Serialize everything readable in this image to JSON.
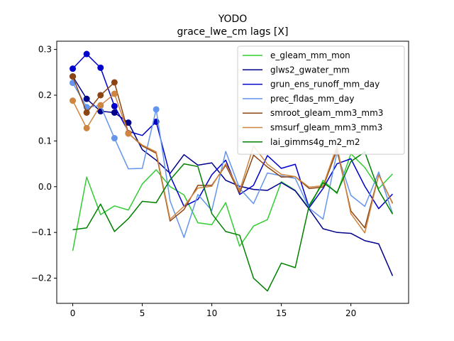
{
  "chart_data": {
    "type": "line",
    "title": "YODO",
    "subtitle": "grace_lwe_cm lags [X]",
    "xlabel": "",
    "ylabel": "",
    "xlim": [
      -1.15,
      24.15
    ],
    "ylim": [
      -0.255,
      0.318
    ],
    "x_ticks": [
      0,
      5,
      10,
      15,
      20
    ],
    "y_ticks": [
      -0.2,
      -0.1,
      0.0,
      0.1,
      0.2,
      0.3
    ],
    "y_tick_labels": [
      "−0.2",
      "−0.1",
      "0.0",
      "0.1",
      "0.2",
      "0.3"
    ],
    "legend_position": "top-right",
    "x": [
      0,
      1,
      2,
      3,
      4,
      5,
      6,
      7,
      8,
      9,
      10,
      11,
      12,
      13,
      14,
      15,
      16,
      17,
      18,
      19,
      20,
      21,
      22,
      23
    ],
    "series": [
      {
        "name": "e_gleam_mm_mon",
        "color": "#32cd32",
        "values": [
          -0.14,
          0.021,
          -0.061,
          -0.042,
          -0.051,
          0.006,
          0.037,
          0.0,
          -0.018,
          -0.079,
          -0.083,
          -0.035,
          -0.13,
          -0.086,
          -0.072,
          0.011,
          -0.008,
          -0.047,
          0.014,
          -0.015,
          0.072,
          0.042,
          -0.004,
          0.028
        ],
        "markers": []
      },
      {
        "name": "glws2_gwater_mm",
        "color": "#00008b",
        "values": [
          0.241,
          0.192,
          0.165,
          0.162,
          0.14,
          0.081,
          0.058,
          0.029,
          0.07,
          0.047,
          0.052,
          0.014,
          0.001,
          -0.006,
          -0.008,
          0.009,
          -0.009,
          -0.049,
          -0.092,
          -0.1,
          -0.102,
          -0.118,
          -0.125,
          -0.195
        ],
        "markers": [
          0,
          1,
          2,
          3,
          4
        ]
      },
      {
        "name": "grun_ens_runoff_mm_day",
        "color": "#0000cd",
        "values": [
          0.258,
          0.29,
          0.26,
          0.176,
          0.121,
          0.112,
          0.142,
          0.024,
          -0.043,
          -0.028,
          0.026,
          0.058,
          -0.017,
          0.003,
          0.068,
          0.04,
          0.049,
          -0.046,
          -0.004,
          0.05,
          0.061,
          0.001,
          -0.048,
          -0.016
        ],
        "markers": [
          0,
          1,
          2,
          3,
          6
        ]
      },
      {
        "name": "prec_fldas_mm_day",
        "color": "#6495ed",
        "values": [
          0.227,
          0.174,
          0.177,
          0.106,
          0.039,
          0.04,
          0.169,
          -0.031,
          -0.111,
          -0.017,
          -0.052,
          0.077,
          -0.004,
          -0.037,
          0.03,
          0.024,
          0.018,
          -0.047,
          -0.071,
          0.075,
          -0.019,
          -0.043,
          0.032,
          -0.059
        ],
        "markers": [
          0,
          1,
          2,
          3,
          6
        ]
      },
      {
        "name": "smroot_gleam_mm3_mm3",
        "color": "#8b4513",
        "values": [
          0.241,
          0.162,
          0.2,
          0.228,
          0.117,
          0.089,
          0.073,
          -0.075,
          -0.05,
          0.003,
          0.003,
          0.047,
          -0.014,
          0.069,
          0.043,
          0.021,
          0.022,
          -0.004,
          -0.001,
          0.081,
          -0.053,
          -0.09,
          0.026,
          -0.036
        ],
        "markers": [
          0,
          1,
          2,
          3,
          4
        ]
      },
      {
        "name": "smsurf_gleam_mm3_mm3",
        "color": "#cd853f",
        "values": [
          0.188,
          0.128,
          0.178,
          0.203,
          0.116,
          0.091,
          0.076,
          -0.071,
          -0.043,
          -0.003,
          0.001,
          0.05,
          -0.009,
          0.089,
          0.049,
          0.027,
          0.022,
          -0.001,
          0.002,
          0.089,
          -0.059,
          -0.101,
          0.026,
          -0.037
        ],
        "markers": [
          0,
          1,
          2,
          3,
          4
        ]
      },
      {
        "name": "lai_gimms4g_m2_m2",
        "color": "#008000",
        "values": [
          -0.094,
          -0.09,
          -0.038,
          -0.098,
          -0.07,
          -0.032,
          -0.035,
          0.015,
          0.05,
          0.044,
          -0.059,
          -0.098,
          -0.106,
          -0.2,
          -0.228,
          -0.167,
          -0.177,
          -0.041,
          0.009,
          -0.013,
          0.055,
          0.076,
          -0.008,
          -0.06
        ],
        "markers": []
      }
    ]
  }
}
